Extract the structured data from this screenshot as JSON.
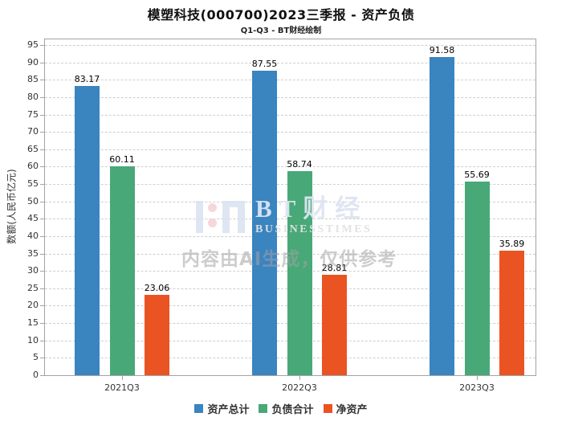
{
  "title": "模塑科技(000700)2023三季报 - 资产负债",
  "subtitle": "Q1-Q3 - BT财经绘制",
  "watermark": {
    "brand": "BT财经",
    "brand_sub": "BUSINESSTIMES",
    "disclaimer": "内容由AI生成，仅供参考"
  },
  "chart_data": {
    "type": "bar",
    "title": "模塑科技(000700)2023三季报 - 资产负债",
    "subtitle": "Q1-Q3 - BT财经绘制",
    "categories": [
      "2021Q3",
      "2022Q3",
      "2023Q3"
    ],
    "series": [
      {
        "name": "资产总计",
        "color": "#3a84c0",
        "values": [
          83.17,
          87.55,
          91.58
        ]
      },
      {
        "name": "负债合计",
        "color": "#48a878",
        "values": [
          60.11,
          58.74,
          55.69
        ]
      },
      {
        "name": "净资产",
        "color": "#ea5422",
        "values": [
          23.06,
          28.81,
          35.89
        ]
      }
    ],
    "xlabel": "",
    "ylabel": "数额(人民币亿元)",
    "ylim": [
      0,
      95
    ],
    "ytick_step": 5,
    "grid": "horizontal-dashed",
    "grid_color": "#cfcfcf",
    "axis_color": "#a3a3a3",
    "legend_position": "bottom"
  }
}
